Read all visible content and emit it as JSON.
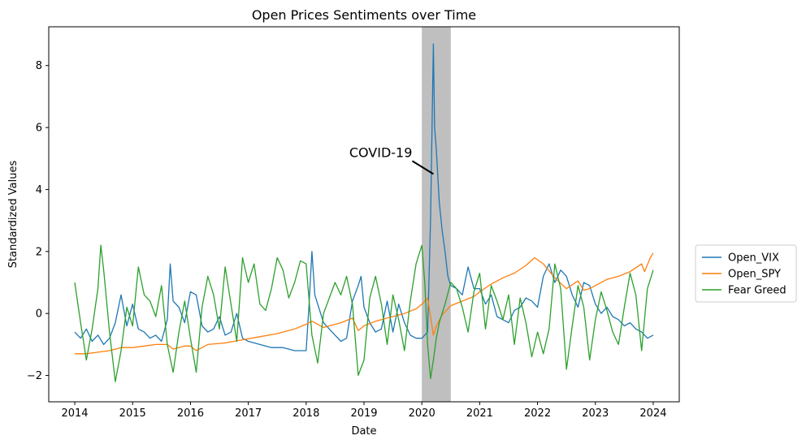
{
  "chart_data": {
    "type": "line",
    "title": "Open Prices Sentiments over Time",
    "xlabel": "Date",
    "ylabel": "Standardized Values",
    "xlim": [
      2013.55,
      2024.45
    ],
    "ylim": [
      -2.85,
      9.25
    ],
    "xticks": [
      "2014",
      "2015",
      "2016",
      "2017",
      "2018",
      "2019",
      "2020",
      "2021",
      "2022",
      "2023",
      "2024"
    ],
    "yticks": [
      "−2",
      "0",
      "2",
      "4",
      "6",
      "8"
    ],
    "grid": false,
    "legend_position": "right",
    "shaded_region": {
      "x": [
        2020.0,
        2020.5
      ],
      "color": "#bfbfbf"
    },
    "annotation": {
      "text": "COVID-19",
      "x": 2020.2,
      "y": 4.5
    },
    "series": [
      {
        "name": "Open_VIX",
        "color": "#1f77b4",
        "x": [
          2014.0,
          2014.1,
          2014.2,
          2014.3,
          2014.4,
          2014.5,
          2014.6,
          2014.7,
          2014.8,
          2014.9,
          2015.0,
          2015.1,
          2015.2,
          2015.3,
          2015.4,
          2015.5,
          2015.6,
          2015.65,
          2015.7,
          2015.8,
          2015.9,
          2016.0,
          2016.1,
          2016.2,
          2016.3,
          2016.4,
          2016.5,
          2016.6,
          2016.7,
          2016.8,
          2016.9,
          2017.0,
          2017.2,
          2017.4,
          2017.6,
          2017.8,
          2018.0,
          2018.05,
          2018.1,
          2018.15,
          2018.2,
          2018.3,
          2018.4,
          2018.5,
          2018.6,
          2018.7,
          2018.8,
          2018.9,
          2018.95,
          2019.0,
          2019.1,
          2019.2,
          2019.3,
          2019.4,
          2019.5,
          2019.6,
          2019.7,
          2019.8,
          2019.9,
          2020.0,
          2020.1,
          2020.15,
          2020.2,
          2020.22,
          2020.25,
          2020.3,
          2020.35,
          2020.4,
          2020.45,
          2020.5,
          2020.6,
          2020.7,
          2020.8,
          2020.9,
          2021.0,
          2021.1,
          2021.2,
          2021.3,
          2021.4,
          2021.5,
          2021.6,
          2021.7,
          2021.8,
          2021.9,
          2022.0,
          2022.1,
          2022.2,
          2022.3,
          2022.4,
          2022.5,
          2022.6,
          2022.7,
          2022.8,
          2022.9,
          2023.0,
          2023.1,
          2023.2,
          2023.3,
          2023.4,
          2023.5,
          2023.6,
          2023.7,
          2023.8,
          2023.9,
          2024.0
        ],
        "values": [
          -0.6,
          -0.8,
          -0.5,
          -0.9,
          -0.7,
          -1.0,
          -0.8,
          -0.3,
          0.6,
          -0.4,
          0.3,
          -0.5,
          -0.6,
          -0.8,
          -0.7,
          -0.9,
          -0.2,
          1.6,
          0.4,
          0.2,
          -0.3,
          0.7,
          0.6,
          -0.4,
          -0.6,
          -0.5,
          -0.1,
          -0.7,
          -0.6,
          0.0,
          -0.8,
          -0.9,
          -1.0,
          -1.1,
          -1.1,
          -1.2,
          -1.2,
          0.3,
          2.0,
          0.6,
          0.3,
          -0.3,
          -0.5,
          -0.7,
          -0.9,
          -0.8,
          0.4,
          0.9,
          1.2,
          0.2,
          -0.3,
          -0.6,
          -0.5,
          0.4,
          -0.6,
          0.3,
          -0.3,
          -0.7,
          -0.8,
          -0.8,
          -0.6,
          3.0,
          8.7,
          6.0,
          5.3,
          3.6,
          2.7,
          2.0,
          1.2,
          0.9,
          0.8,
          0.6,
          1.5,
          0.8,
          0.8,
          0.3,
          0.6,
          -0.1,
          -0.2,
          -0.3,
          0.1,
          0.2,
          0.5,
          0.4,
          0.2,
          1.2,
          1.6,
          1.0,
          1.4,
          1.2,
          0.6,
          0.2,
          1.0,
          0.9,
          0.3,
          0.0,
          0.2,
          -0.1,
          -0.2,
          -0.4,
          -0.3,
          -0.5,
          -0.6,
          -0.8,
          -0.7
        ]
      },
      {
        "name": "Open_SPY",
        "color": "#ff7f0e",
        "x": [
          2014.0,
          2014.2,
          2014.4,
          2014.6,
          2014.8,
          2015.0,
          2015.2,
          2015.4,
          2015.6,
          2015.7,
          2015.9,
          2016.0,
          2016.1,
          2016.3,
          2016.6,
          2016.9,
          2017.2,
          2017.5,
          2017.8,
          2018.0,
          2018.1,
          2018.3,
          2018.6,
          2018.8,
          2018.9,
          2019.0,
          2019.2,
          2019.4,
          2019.7,
          2019.9,
          2020.0,
          2020.1,
          2020.2,
          2020.25,
          2020.35,
          2020.5,
          2020.7,
          2020.9,
          2021.0,
          2021.2,
          2021.4,
          2021.6,
          2021.8,
          2021.95,
          2022.1,
          2022.3,
          2022.5,
          2022.7,
          2022.8,
          2022.9,
          2023.0,
          2023.2,
          2023.4,
          2023.6,
          2023.8,
          2023.85,
          2023.95,
          2024.0
        ],
        "values": [
          -1.3,
          -1.3,
          -1.25,
          -1.2,
          -1.1,
          -1.1,
          -1.05,
          -1.0,
          -1.0,
          -1.15,
          -1.05,
          -1.05,
          -1.2,
          -1.0,
          -0.95,
          -0.85,
          -0.75,
          -0.65,
          -0.5,
          -0.35,
          -0.25,
          -0.45,
          -0.3,
          -0.15,
          -0.55,
          -0.4,
          -0.25,
          -0.15,
          0.0,
          0.15,
          0.3,
          0.5,
          -0.7,
          -0.4,
          -0.05,
          0.25,
          0.4,
          0.55,
          0.7,
          0.95,
          1.15,
          1.3,
          1.55,
          1.8,
          1.6,
          1.15,
          0.8,
          1.05,
          0.75,
          0.8,
          0.9,
          1.1,
          1.2,
          1.35,
          1.6,
          1.35,
          1.8,
          1.95
        ]
      },
      {
        "name": "Fear Greed",
        "color": "#2ca02c",
        "x": [
          2014.0,
          2014.1,
          2014.2,
          2014.3,
          2014.4,
          2014.45,
          2014.5,
          2014.6,
          2014.7,
          2014.8,
          2014.9,
          2015.0,
          2015.1,
          2015.2,
          2015.3,
          2015.4,
          2015.5,
          2015.6,
          2015.7,
          2015.8,
          2015.9,
          2016.0,
          2016.1,
          2016.2,
          2016.3,
          2016.4,
          2016.5,
          2016.6,
          2016.7,
          2016.8,
          2016.9,
          2017.0,
          2017.1,
          2017.2,
          2017.3,
          2017.4,
          2017.5,
          2017.6,
          2017.7,
          2017.8,
          2017.9,
          2018.0,
          2018.1,
          2018.2,
          2018.3,
          2018.4,
          2018.5,
          2018.6,
          2018.7,
          2018.8,
          2018.9,
          2019.0,
          2019.1,
          2019.2,
          2019.3,
          2019.4,
          2019.5,
          2019.6,
          2019.7,
          2019.8,
          2019.9,
          2020.0,
          2020.05,
          2020.1,
          2020.15,
          2020.2,
          2020.25,
          2020.3,
          2020.4,
          2020.5,
          2020.6,
          2020.7,
          2020.8,
          2020.9,
          2021.0,
          2021.1,
          2021.2,
          2021.3,
          2021.4,
          2021.5,
          2021.6,
          2021.7,
          2021.8,
          2021.9,
          2022.0,
          2022.1,
          2022.2,
          2022.3,
          2022.4,
          2022.5,
          2022.6,
          2022.7,
          2022.8,
          2022.9,
          2023.0,
          2023.1,
          2023.2,
          2023.3,
          2023.4,
          2023.5,
          2023.6,
          2023.7,
          2023.8,
          2023.9,
          2024.0
        ],
        "values": [
          1.0,
          -0.3,
          -1.5,
          -0.5,
          0.8,
          2.2,
          1.4,
          -0.6,
          -2.2,
          -1.2,
          0.2,
          -0.4,
          1.5,
          0.6,
          0.4,
          -0.1,
          0.9,
          -1.0,
          -1.9,
          -0.6,
          0.4,
          -0.8,
          -1.9,
          0.2,
          1.2,
          0.6,
          -0.5,
          1.5,
          0.3,
          -0.9,
          1.8,
          1.0,
          1.6,
          0.3,
          0.1,
          0.8,
          1.8,
          1.4,
          0.5,
          1.0,
          1.7,
          1.6,
          -0.7,
          -1.6,
          0.0,
          0.5,
          1.0,
          0.6,
          1.2,
          0.3,
          -2.0,
          -1.5,
          0.5,
          1.2,
          0.3,
          -1.0,
          0.6,
          -0.2,
          -1.2,
          0.4,
          1.6,
          2.2,
          1.0,
          -1.0,
          -2.1,
          -1.5,
          -0.8,
          -0.3,
          0.3,
          1.0,
          0.8,
          0.2,
          -0.6,
          0.7,
          1.3,
          -0.5,
          0.9,
          0.4,
          -0.2,
          0.6,
          -1.0,
          0.5,
          -0.3,
          -1.4,
          -0.6,
          -1.3,
          -0.5,
          1.6,
          0.8,
          -1.8,
          -0.4,
          0.9,
          0.2,
          -1.5,
          -0.2,
          0.7,
          0.1,
          -0.6,
          -1.0,
          0.2,
          1.3,
          0.6,
          -1.2,
          0.8,
          1.4
        ]
      }
    ]
  }
}
